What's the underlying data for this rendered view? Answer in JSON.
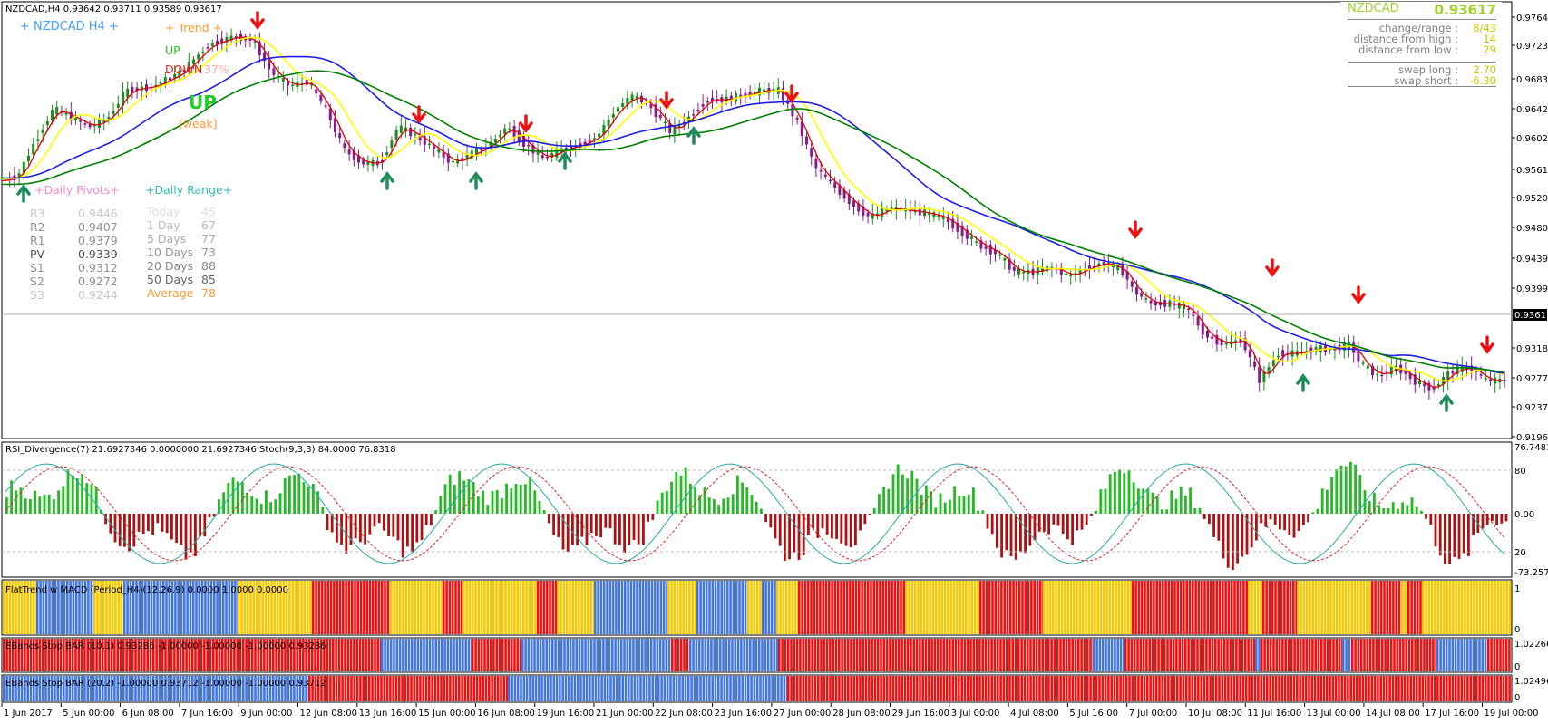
{
  "header": {
    "title": "NZDCAD,H4  0.93642 0.93711 0.93589 0.93617",
    "subtitle": "+  NZDCAD  H4  +"
  },
  "trend_box": {
    "title": "+   Trend   +",
    "up_label": "UP",
    "down_label": "DOWN",
    "percent": "37%",
    "direction": "UP",
    "strength": "[weak]"
  },
  "pivots": {
    "title": "+Daily Pivots+",
    "rows": [
      {
        "label": "R3",
        "value": "0.9446"
      },
      {
        "label": "R2",
        "value": "0.9407"
      },
      {
        "label": "R1",
        "value": "0.9379"
      },
      {
        "label": "PV",
        "value": "0.9339"
      },
      {
        "label": "S1",
        "value": "0.9312"
      },
      {
        "label": "S2",
        "value": "0.9272"
      },
      {
        "label": "S3",
        "value": "0.9244"
      }
    ]
  },
  "daily_range": {
    "title": "+Daily Range+",
    "rows": [
      {
        "label": "Today",
        "value": "45"
      },
      {
        "label": "1 Day",
        "value": "67"
      },
      {
        "label": "5 Days",
        "value": "77"
      },
      {
        "label": "10 Days",
        "value": "73"
      },
      {
        "label": "20 Days",
        "value": "88"
      },
      {
        "label": "50 Days",
        "value": "85"
      }
    ],
    "average_label": "Average",
    "average_value": "78"
  },
  "info_panel": {
    "symbol": "NZDCAD",
    "price": "0.93617",
    "rows": [
      {
        "label": "change/range :",
        "value": "8/43"
      },
      {
        "label": "distance from high :",
        "value": "14"
      },
      {
        "label": "distance from low :",
        "value": "29"
      },
      {
        "label": "swap long :",
        "value": "2.70"
      },
      {
        "label": "swap short :",
        "value": "-6.30"
      }
    ]
  },
  "price_axis": {
    "labels": [
      "0.97640",
      "0.97235",
      "0.96830",
      "0.96420",
      "0.96020",
      "0.95610",
      "0.95200",
      "0.94800",
      "0.94390",
      "0.93990",
      "0.93180",
      "0.92770",
      "0.92370",
      "0.91960"
    ],
    "current_price": "0.93617"
  },
  "time_axis": {
    "labels": [
      "1 Jun 2017",
      "5 Jun 00:00",
      "6 Jun 08:00",
      "7 Jun 16:00",
      "9 Jun 00:00",
      "12 Jun 08:00",
      "13 Jun 16:00",
      "15 Jun 00:00",
      "16 Jun 08:00",
      "19 Jun 16:00",
      "21 Jun 00:00",
      "22 Jun 08:00",
      "23 Jun 16:00",
      "27 Jun 00:00",
      "28 Jun 08:00",
      "29 Jun 16:00",
      "3 Jul 00:00",
      "4 Jul 08:00",
      "5 Jul 16:00",
      "7 Jul 00:00",
      "10 Jul 08:00",
      "11 Jul 16:00",
      "13 Jul 00:00",
      "14 Jul 08:00",
      "17 Jul 16:00",
      "19 Jul 00:00"
    ]
  },
  "panels": {
    "rsi": {
      "label": "RSI_Divergence(7) 21.6927346 0.0000000 21.6927346  Stoch(9,3,3) 84.0000 76.8318",
      "axis": [
        "76.74812",
        "80",
        "0.00",
        "20",
        "-73.25729"
      ]
    },
    "flattrend": {
      "label": "FlatTrend w MACD (Period_H4)(12,26,9) 0.0000 1.0000 0.0000",
      "axis": [
        "1",
        "0"
      ]
    },
    "ebands1": {
      "label": "EBands Stop BAR (10,1) 0.93286 -1.00000 -1.00000 -1.00000 0.93286",
      "axis": [
        "1.02266",
        "0"
      ]
    },
    "ebands2": {
      "label": "EBands Stop BAR (20,2) -1.00000 0.93712 -1.00000 -1.00000 0.93712",
      "axis": [
        "1.02496",
        "0"
      ]
    }
  },
  "colors": {
    "bull": "#1e8c1e",
    "bear": "#8b1a8b",
    "ma_fast": "#ffff00",
    "ma_red": "#e00000",
    "ma_blue": "#1e1ee6",
    "ma_green": "#008000",
    "hist_up": "#22bb22",
    "hist_down": "#b01010",
    "flat_yellow": "#f8c800",
    "flat_red": "#ee1111",
    "flat_blue": "#4477dd"
  }
}
